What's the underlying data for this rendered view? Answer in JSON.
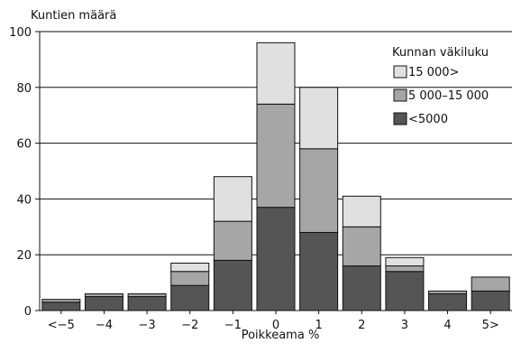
{
  "chart_data": {
    "type": "bar",
    "stacked": true,
    "title": "",
    "xlabel": "Poikkeama %",
    "ylabel": "Kuntien määrä",
    "ylim": [
      0,
      100
    ],
    "yticks": [
      0,
      20,
      40,
      60,
      80,
      100
    ],
    "categories": [
      "<−5",
      "−4",
      "−3",
      "−2",
      "−1",
      "0",
      "1",
      "2",
      "3",
      "4",
      "5>"
    ],
    "series": [
      {
        "name": "<5000",
        "color": "#555555",
        "values": [
          3,
          5,
          5,
          9,
          18,
          37,
          28,
          16,
          14,
          6,
          7
        ]
      },
      {
        "name": "5 000–15 000",
        "color": "#a6a6a6",
        "values": [
          1,
          1,
          1,
          5,
          14,
          37,
          30,
          14,
          2,
          1,
          5
        ]
      },
      {
        "name": "15 000>",
        "color": "#e0e0e0",
        "values": [
          0,
          0,
          0,
          3,
          16,
          22,
          22,
          11,
          3,
          0,
          0
        ]
      }
    ],
    "legend": {
      "title": "Kunnan väkiluku",
      "placement": "top-right",
      "order": [
        "15 000>",
        "5 000–15 000",
        "<5000"
      ]
    },
    "grid": {
      "horizontal": true,
      "vertical": false
    }
  }
}
